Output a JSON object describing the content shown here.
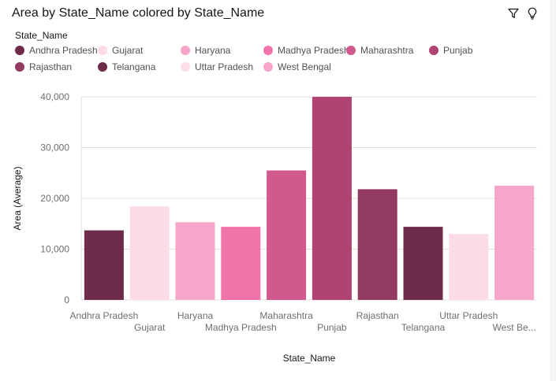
{
  "widget": {
    "title": "Area by State_Name colored by State_Name",
    "filter_icon": "filter-icon",
    "insight_icon": "lightbulb-icon"
  },
  "legend": {
    "title": "State_Name",
    "items": [
      {
        "label": "Andhra Pradesh",
        "color": "#6f2c4a"
      },
      {
        "label": "Gujarat",
        "color": "#fddce8"
      },
      {
        "label": "Haryana",
        "color": "#f5a6c9"
      },
      {
        "label": "Madhya Pradesh",
        "color": "#f074a9"
      },
      {
        "label": "Maharashtra",
        "color": "#d2598e"
      },
      {
        "label": "Punjab",
        "color": "#b04372"
      },
      {
        "label": "Rajasthan",
        "color": "#933a60"
      },
      {
        "label": "Telangana",
        "color": "#6f2c4a"
      },
      {
        "label": "Uttar Pradesh",
        "color": "#fddce8"
      },
      {
        "label": "West Bengal",
        "color": "#f5a6c9"
      }
    ]
  },
  "chart_data": {
    "type": "bar",
    "categories": [
      "Andhra Pradesh",
      "Gujarat",
      "Haryana",
      "Madhya Pradesh",
      "Maharashtra",
      "Punjab",
      "Rajasthan",
      "Telangana",
      "Uttar Pradesh",
      "West Bengal"
    ],
    "category_tick_labels": [
      "Andhra Pradesh",
      "Gujarat",
      "Haryana",
      "Madhya Pradesh",
      "Maharashtra",
      "Punjab",
      "Rajasthan",
      "Telangana",
      "Uttar Pradesh",
      "West Be..."
    ],
    "values": [
      13700,
      18400,
      15300,
      14400,
      25500,
      40000,
      21800,
      14400,
      13000,
      22500
    ],
    "colors": [
      "#6f2c4a",
      "#fddce8",
      "#f5a6c9",
      "#f074a9",
      "#d2598e",
      "#b04372",
      "#933a60",
      "#6f2c4a",
      "#fddce8",
      "#f5a6c9"
    ],
    "title": "Area by State_Name colored by State_Name",
    "xlabel": "State_Name",
    "ylabel": "Area (Average)",
    "ylim": [
      0,
      40000
    ],
    "yticks": [
      0,
      10000,
      20000,
      30000,
      40000
    ],
    "ytick_labels": [
      "0",
      "10,000",
      "20,000",
      "30,000",
      "40,000"
    ],
    "grid": true,
    "legend_position": "top"
  }
}
